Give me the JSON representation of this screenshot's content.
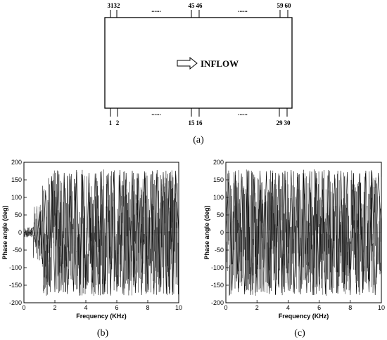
{
  "schematic": {
    "top_labels": [
      "31",
      "32",
      "45",
      "46",
      "59",
      "60"
    ],
    "bottom_labels": [
      "1",
      "2",
      "15",
      "16",
      "29",
      "30"
    ],
    "ellipsis": "......",
    "inflow_label": "INFLOW",
    "caption": "(a)"
  },
  "chart_data": [
    {
      "type": "line",
      "caption": "(b)",
      "title": "",
      "xlabel": "Frequency (KHz)",
      "ylabel": "Phase angle (deg)",
      "xlim": [
        0,
        10
      ],
      "ylim": [
        -200,
        200
      ],
      "xticks": [
        0,
        2,
        4,
        6,
        8,
        10
      ],
      "yticks": [
        -200,
        -150,
        -100,
        -50,
        0,
        50,
        100,
        150,
        200
      ],
      "grid": false,
      "series": [
        {
          "color": "#000000",
          "x": [
            0,
            0.2,
            0.4,
            0.6,
            0.8,
            1.0,
            1.2,
            1.4,
            1.6,
            1.8,
            2.0,
            2.2,
            2.4,
            2.6,
            2.8,
            3.0,
            3.2,
            3.4,
            3.6,
            3.8,
            4.0,
            4.2,
            4.4,
            4.6,
            4.8,
            5.0,
            5.2,
            5.4,
            5.6,
            5.8,
            6.0,
            6.2,
            6.4,
            6.6,
            6.8,
            7.0,
            7.2,
            7.4,
            7.6,
            7.8,
            8.0,
            8.2,
            8.4,
            8.6,
            8.8,
            9.0,
            9.2,
            9.4,
            9.6,
            9.8,
            10.0
          ],
          "y": [
            0,
            5,
            -3,
            15,
            -40,
            60,
            -90,
            120,
            -150,
            160,
            -170,
            175,
            -165,
            170,
            -175,
            160,
            -168,
            178,
            -172,
            165,
            -160,
            170,
            -175,
            168,
            -178,
            175,
            -170,
            165,
            -176,
            172,
            -168,
            178,
            -174,
            170,
            -165,
            176,
            -172,
            168,
            -178,
            174,
            -170,
            165,
            -176,
            178,
            -168,
            172,
            -174,
            170,
            -178,
            176,
            0
          ]
        }
      ]
    },
    {
      "type": "line",
      "caption": "(c)",
      "title": "",
      "xlabel": "Frequency (KHz)",
      "ylabel": "Phase angle (deg)",
      "xlim": [
        0,
        10
      ],
      "ylim": [
        -200,
        200
      ],
      "xticks": [
        0,
        2,
        4,
        6,
        8,
        10
      ],
      "yticks": [
        -200,
        -150,
        -100,
        -50,
        0,
        50,
        100,
        150,
        200
      ],
      "grid": false,
      "series": [
        {
          "color": "#000000",
          "x": [
            0,
            0.2,
            0.4,
            0.6,
            0.8,
            1.0,
            1.2,
            1.4,
            1.6,
            1.8,
            2.0,
            2.2,
            2.4,
            2.6,
            2.8,
            3.0,
            3.2,
            3.4,
            3.6,
            3.8,
            4.0,
            4.2,
            4.4,
            4.6,
            4.8,
            5.0,
            5.2,
            5.4,
            5.6,
            5.8,
            6.0,
            6.2,
            6.4,
            6.6,
            6.8,
            7.0,
            7.2,
            7.4,
            7.6,
            7.8,
            8.0,
            8.2,
            8.4,
            8.6,
            8.8,
            9.0,
            9.2,
            9.4,
            9.6,
            9.8,
            10.0
          ],
          "y": [
            0,
            170,
            -165,
            175,
            -170,
            168,
            -176,
            172,
            -178,
            165,
            -170,
            176,
            -168,
            174,
            -175,
            170,
            -178,
            168,
            -172,
            176,
            -165,
            178,
            -174,
            170,
            -176,
            168,
            -172,
            175,
            -178,
            170,
            -166,
            174,
            -176,
            178,
            -170,
            165,
            -174,
            176,
            -168,
            172,
            -178,
            170,
            -175,
            168,
            -172,
            176,
            -170,
            174,
            -178,
            170,
            0
          ]
        }
      ]
    }
  ]
}
